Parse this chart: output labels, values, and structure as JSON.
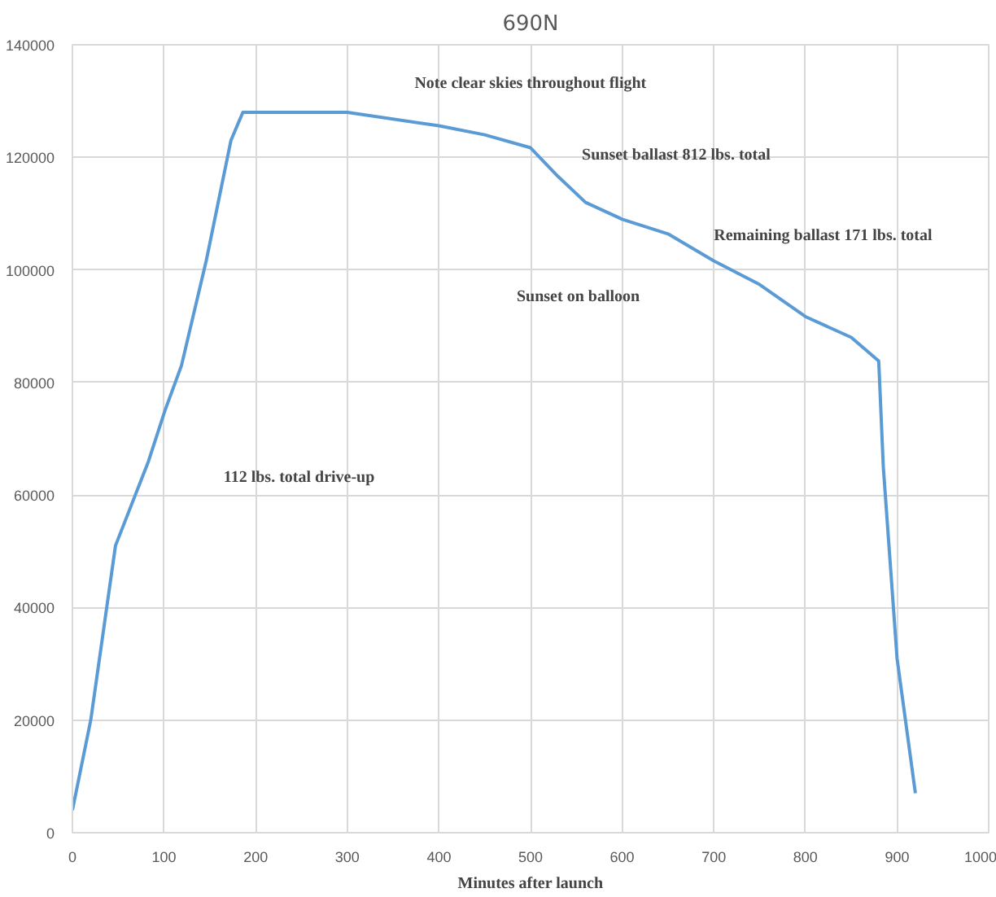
{
  "chart_data": {
    "type": "line",
    "title": "690N",
    "xlabel": "Minutes after launch",
    "x": [
      0,
      20,
      47,
      83,
      101,
      119,
      146,
      173,
      186,
      200,
      300,
      400,
      450,
      500,
      530,
      560,
      600,
      650,
      700,
      750,
      800,
      850,
      880,
      885,
      900,
      920
    ],
    "series": [
      {
        "color": "#5b9bd5",
        "values": [
          4000,
          20000,
          51000,
          66000,
          75000,
          83000,
          101600,
          123000,
          128000,
          128000,
          128000,
          125600,
          124000,
          121700,
          116600,
          112000,
          109000,
          106400,
          101600,
          97400,
          91700,
          88000,
          83800,
          65000,
          31000,
          7000
        ]
      }
    ],
    "xlim": [
      0,
      1000
    ],
    "xticks": [
      0,
      100,
      200,
      300,
      400,
      500,
      600,
      700,
      800,
      900,
      1000
    ],
    "ylim": [
      0,
      140000
    ],
    "yticks": [
      0,
      20000,
      40000,
      60000,
      80000,
      100000,
      120000,
      140000
    ],
    "grid": true,
    "marker": "none",
    "line_style": "solid",
    "annotations": [
      "Note clear skies throughout flight",
      "Sunset ballast 812 lbs. total",
      "Sunset on balloon",
      "Remaining ballast 171 lbs. total",
      "112 lbs. total drive-up"
    ]
  }
}
